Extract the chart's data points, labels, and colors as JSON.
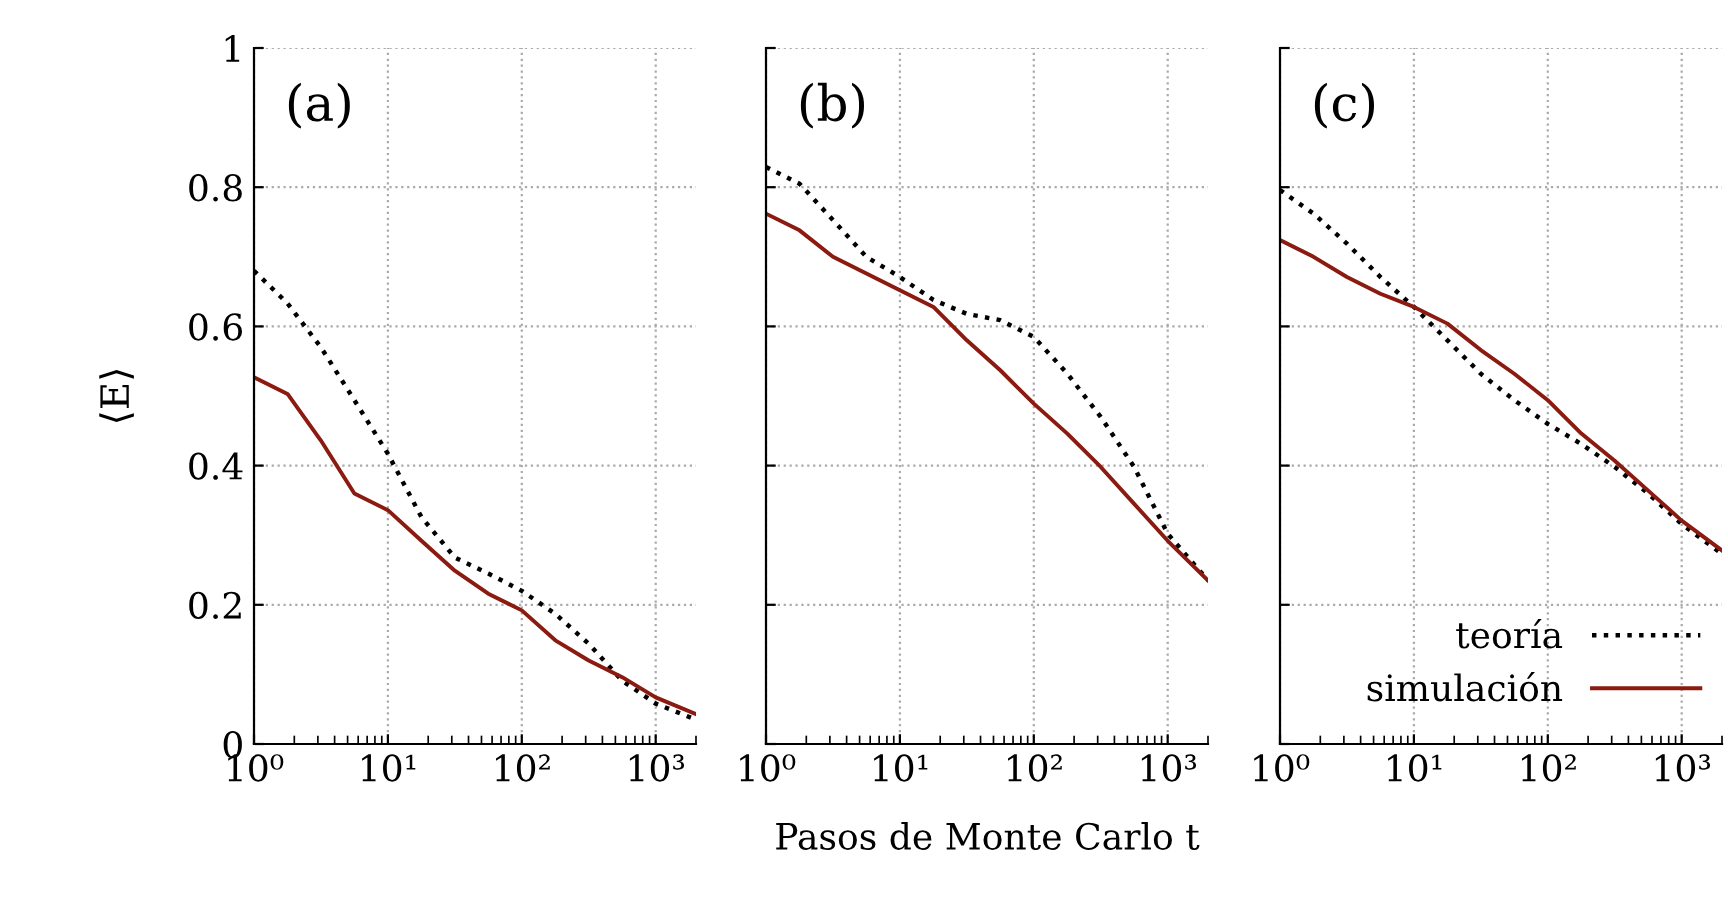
{
  "chart_data": [
    {
      "type": "line",
      "annotations": [
        "(a)"
      ],
      "ylabel": "⟨E⟩",
      "x": [
        1,
        1.78,
        3.16,
        5.62,
        10,
        17.8,
        31.6,
        56.2,
        100,
        178,
        316,
        562,
        1000,
        2000
      ],
      "series": [
        {
          "color": "#000000",
          "line_style": "dotted",
          "values": [
            0.68,
            0.633,
            0.57,
            0.494,
            0.417,
            0.326,
            0.268,
            0.245,
            0.22,
            0.187,
            0.144,
            0.091,
            0.058,
            0.035
          ]
        },
        {
          "color": "#8b1a10",
          "line_style": "solid",
          "values": [
            0.527,
            0.503,
            0.436,
            0.36,
            0.336,
            0.292,
            0.249,
            0.216,
            0.192,
            0.149,
            0.12,
            0.096,
            0.067,
            0.043
          ]
        }
      ],
      "log": "x",
      "xlim": [
        1,
        2000
      ],
      "ylim": [
        0,
        1
      ],
      "xticks": [
        {
          "value": 1,
          "label": "10⁰"
        },
        {
          "value": 10,
          "label": "10¹"
        },
        {
          "value": 100,
          "label": "10²"
        },
        {
          "value": 1000,
          "label": "10³"
        }
      ],
      "yticks": [
        0,
        0.2,
        0.4,
        0.6,
        0.8,
        1
      ],
      "grid": true,
      "legend": false
    },
    {
      "type": "line",
      "annotations": [
        "(b)"
      ],
      "xlabel": "Pasos de Monte Carlo t",
      "x": [
        1,
        1.78,
        3.16,
        5.62,
        10,
        17.8,
        31.6,
        56.2,
        100,
        178,
        316,
        562,
        1000,
        2000
      ],
      "series": [
        {
          "color": "#000000",
          "line_style": "dotted",
          "values": [
            0.829,
            0.805,
            0.753,
            0.7,
            0.671,
            0.638,
            0.618,
            0.609,
            0.585,
            0.532,
            0.47,
            0.398,
            0.302,
            0.235
          ]
        },
        {
          "color": "#8b1a10",
          "line_style": "solid",
          "values": [
            0.762,
            0.738,
            0.7,
            0.676,
            0.652,
            0.628,
            0.58,
            0.537,
            0.489,
            0.446,
            0.398,
            0.345,
            0.292,
            0.235
          ]
        }
      ],
      "log": "x",
      "xlim": [
        1,
        2000
      ],
      "ylim": [
        0,
        1
      ],
      "xticks": [
        {
          "value": 1,
          "label": "10⁰"
        },
        {
          "value": 10,
          "label": "10¹"
        },
        {
          "value": 100,
          "label": "10²"
        },
        {
          "value": 1000,
          "label": "10³"
        }
      ],
      "yticks": [
        {
          "value": 0,
          "label": null
        },
        {
          "value": 0.2,
          "label": null
        },
        {
          "value": 0.4,
          "label": null
        },
        {
          "value": 0.6,
          "label": null
        },
        {
          "value": 0.8,
          "label": null
        },
        {
          "value": 1,
          "label": null
        }
      ],
      "tick_labels": "x",
      "grid": true,
      "legend": false
    },
    {
      "type": "line",
      "annotations": [
        "(c)"
      ],
      "x": [
        1,
        1.78,
        3.16,
        5.62,
        10,
        17.8,
        31.6,
        56.2,
        100,
        178,
        316,
        562,
        1000,
        2000
      ],
      "series": [
        {
          "name": "teoría",
          "color": "#000000",
          "line_style": "dotted",
          "values": [
            0.796,
            0.762,
            0.719,
            0.671,
            0.628,
            0.58,
            0.532,
            0.494,
            0.46,
            0.431,
            0.398,
            0.36,
            0.316,
            0.273
          ]
        },
        {
          "name": "simulación",
          "color": "#8b1a10",
          "line_style": "solid",
          "values": [
            0.724,
            0.7,
            0.671,
            0.647,
            0.628,
            0.604,
            0.566,
            0.532,
            0.494,
            0.446,
            0.407,
            0.364,
            0.321,
            0.278
          ]
        }
      ],
      "log": "x",
      "xlim": [
        1,
        2000
      ],
      "ylim": [
        0,
        1
      ],
      "xticks": [
        {
          "value": 1,
          "label": "10⁰"
        },
        {
          "value": 10,
          "label": "10¹"
        },
        {
          "value": 100,
          "label": "10²"
        },
        {
          "value": 1000,
          "label": "10³"
        }
      ],
      "yticks": [
        {
          "value": 0,
          "label": null
        },
        {
          "value": 0.2,
          "label": null
        },
        {
          "value": 0.4,
          "label": null
        },
        {
          "value": 0.6,
          "label": null
        },
        {
          "value": 0.8,
          "label": null
        },
        {
          "value": 1,
          "label": null
        }
      ],
      "tick_labels": "x",
      "grid": true,
      "legend": "bottom right"
    }
  ]
}
